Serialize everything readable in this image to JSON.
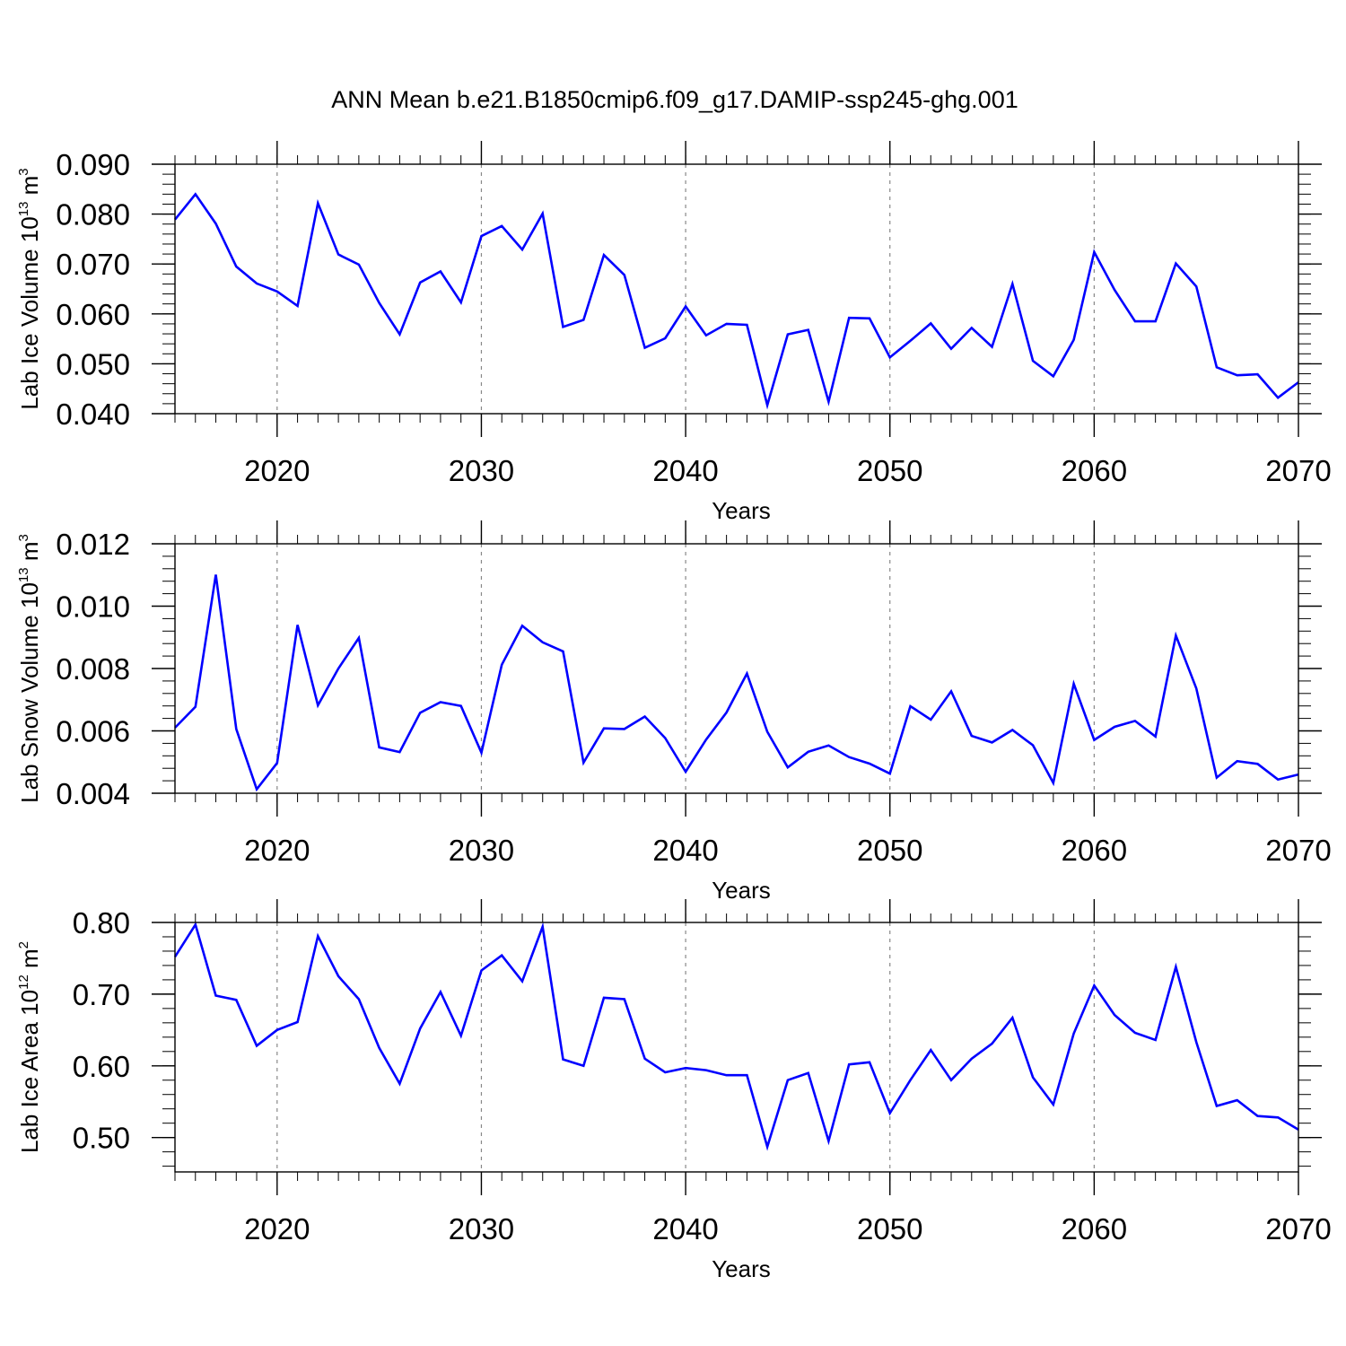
{
  "title": "ANN Mean b.e21.B1850cmip6.f09_g17.DAMIP-ssp245-ghg.001",
  "line_color": "#0000ff",
  "chart_data": [
    {
      "type": "line",
      "name": "ice-volume",
      "ylabel": "Lab Ice Volume",
      "ylabel_units_base": "10",
      "ylabel_units_exp": "13",
      "ylabel_units_unit": "m",
      "ylabel_units_unit_exp": "3",
      "xlabel": "Years",
      "xlim": [
        2015,
        2070
      ],
      "ylim": [
        0.04,
        0.09
      ],
      "yticks": [
        "0.040",
        "0.050",
        "0.060",
        "0.070",
        "0.080",
        "0.090"
      ],
      "xticks": [
        "2020",
        "2030",
        "2040",
        "2050",
        "2060",
        "2070"
      ],
      "x": [
        2015,
        2016,
        2017,
        2018,
        2019,
        2020,
        2021,
        2022,
        2023,
        2024,
        2025,
        2026,
        2027,
        2028,
        2029,
        2030,
        2031,
        2032,
        2033,
        2034,
        2035,
        2036,
        2037,
        2038,
        2039,
        2040,
        2041,
        2042,
        2043,
        2044,
        2045,
        2046,
        2047,
        2048,
        2049,
        2050,
        2051,
        2052,
        2053,
        2054,
        2055,
        2056,
        2057,
        2058,
        2059,
        2060,
        2061,
        2062,
        2063,
        2064,
        2065,
        2066,
        2067,
        2068,
        2069,
        2070
      ],
      "values": [
        0.0789,
        0.084,
        0.0781,
        0.0695,
        0.0661,
        0.0645,
        0.0616,
        0.0822,
        0.0719,
        0.0699,
        0.0622,
        0.0559,
        0.0663,
        0.0685,
        0.0623,
        0.0756,
        0.0776,
        0.0729,
        0.0801,
        0.0574,
        0.0588,
        0.0718,
        0.0678,
        0.0532,
        0.0551,
        0.0615,
        0.0557,
        0.058,
        0.0578,
        0.0417,
        0.0559,
        0.0568,
        0.0424,
        0.0592,
        0.0591,
        0.0513,
        0.0546,
        0.0581,
        0.053,
        0.0572,
        0.0534,
        0.066,
        0.0506,
        0.0475,
        0.0548,
        0.0724,
        0.0648,
        0.0585,
        0.0585,
        0.0701,
        0.0655,
        0.0493,
        0.0477,
        0.0479,
        0.0432,
        0.0463
      ]
    },
    {
      "type": "line",
      "name": "snow-volume",
      "ylabel": "Lab Snow Volume",
      "ylabel_units_base": "10",
      "ylabel_units_exp": "13",
      "ylabel_units_unit": "m",
      "ylabel_units_unit_exp": "3",
      "xlabel": "Years",
      "xlim": [
        2015,
        2070
      ],
      "ylim": [
        0.004,
        0.012
      ],
      "yticks": [
        "0.004",
        "0.006",
        "0.008",
        "0.010",
        "0.012"
      ],
      "xticks": [
        "2020",
        "2030",
        "2040",
        "2050",
        "2060",
        "2070"
      ],
      "x": [
        2015,
        2016,
        2017,
        2018,
        2019,
        2020,
        2021,
        2022,
        2023,
        2024,
        2025,
        2026,
        2027,
        2028,
        2029,
        2030,
        2031,
        2032,
        2033,
        2034,
        2035,
        2036,
        2037,
        2038,
        2039,
        2040,
        2041,
        2042,
        2043,
        2044,
        2045,
        2046,
        2047,
        2048,
        2049,
        2050,
        2051,
        2052,
        2053,
        2054,
        2055,
        2056,
        2057,
        2058,
        2059,
        2060,
        2061,
        2062,
        2063,
        2064,
        2065,
        2066,
        2067,
        2068,
        2069,
        2070
      ],
      "values": [
        0.0061,
        0.00677,
        0.01101,
        0.00606,
        0.00413,
        0.00497,
        0.0094,
        0.00682,
        0.008,
        0.00898,
        0.00547,
        0.00532,
        0.00658,
        0.00692,
        0.0068,
        0.0053,
        0.00812,
        0.00937,
        0.00884,
        0.00855,
        0.00498,
        0.00608,
        0.00606,
        0.00646,
        0.00577,
        0.00469,
        0.00572,
        0.00659,
        0.00784,
        0.00597,
        0.00483,
        0.00533,
        0.00553,
        0.00516,
        0.00495,
        0.00463,
        0.00679,
        0.00636,
        0.00727,
        0.00584,
        0.00563,
        0.00603,
        0.00554,
        0.00433,
        0.00751,
        0.00571,
        0.00613,
        0.00632,
        0.00582,
        0.00906,
        0.00736,
        0.0045,
        0.00503,
        0.00494,
        0.00444,
        0.0046
      ]
    },
    {
      "type": "line",
      "name": "ice-area",
      "ylabel": "Lab Ice Area",
      "ylabel_units_base": "10",
      "ylabel_units_exp": "12",
      "ylabel_units_unit": "m",
      "ylabel_units_unit_exp": "2",
      "xlabel": "Years",
      "xlim": [
        2015,
        2070
      ],
      "ylim": [
        0.452,
        0.8
      ],
      "yticks": [
        "0.50",
        "0.60",
        "0.70",
        "0.80"
      ],
      "ytick_values": [
        0.5,
        0.6,
        0.7,
        0.8
      ],
      "xticks": [
        "2020",
        "2030",
        "2040",
        "2050",
        "2060",
        "2070"
      ],
      "x": [
        2015,
        2016,
        2017,
        2018,
        2019,
        2020,
        2021,
        2022,
        2023,
        2024,
        2025,
        2026,
        2027,
        2028,
        2029,
        2030,
        2031,
        2032,
        2033,
        2034,
        2035,
        2036,
        2037,
        2038,
        2039,
        2040,
        2041,
        2042,
        2043,
        2044,
        2045,
        2046,
        2047,
        2048,
        2049,
        2050,
        2051,
        2052,
        2053,
        2054,
        2055,
        2056,
        2057,
        2058,
        2059,
        2060,
        2061,
        2062,
        2063,
        2064,
        2065,
        2066,
        2067,
        2068,
        2069,
        2070
      ],
      "values": [
        0.752,
        0.797,
        0.698,
        0.692,
        0.628,
        0.65,
        0.661,
        0.781,
        0.725,
        0.693,
        0.625,
        0.575,
        0.652,
        0.703,
        0.642,
        0.733,
        0.754,
        0.718,
        0.794,
        0.609,
        0.6,
        0.695,
        0.693,
        0.61,
        0.591,
        0.597,
        0.594,
        0.587,
        0.587,
        0.487,
        0.58,
        0.59,
        0.495,
        0.602,
        0.605,
        0.534,
        0.58,
        0.622,
        0.58,
        0.61,
        0.631,
        0.667,
        0.584,
        0.546,
        0.645,
        0.712,
        0.671,
        0.646,
        0.636,
        0.738,
        0.633,
        0.544,
        0.552,
        0.53,
        0.528,
        0.511
      ]
    }
  ]
}
